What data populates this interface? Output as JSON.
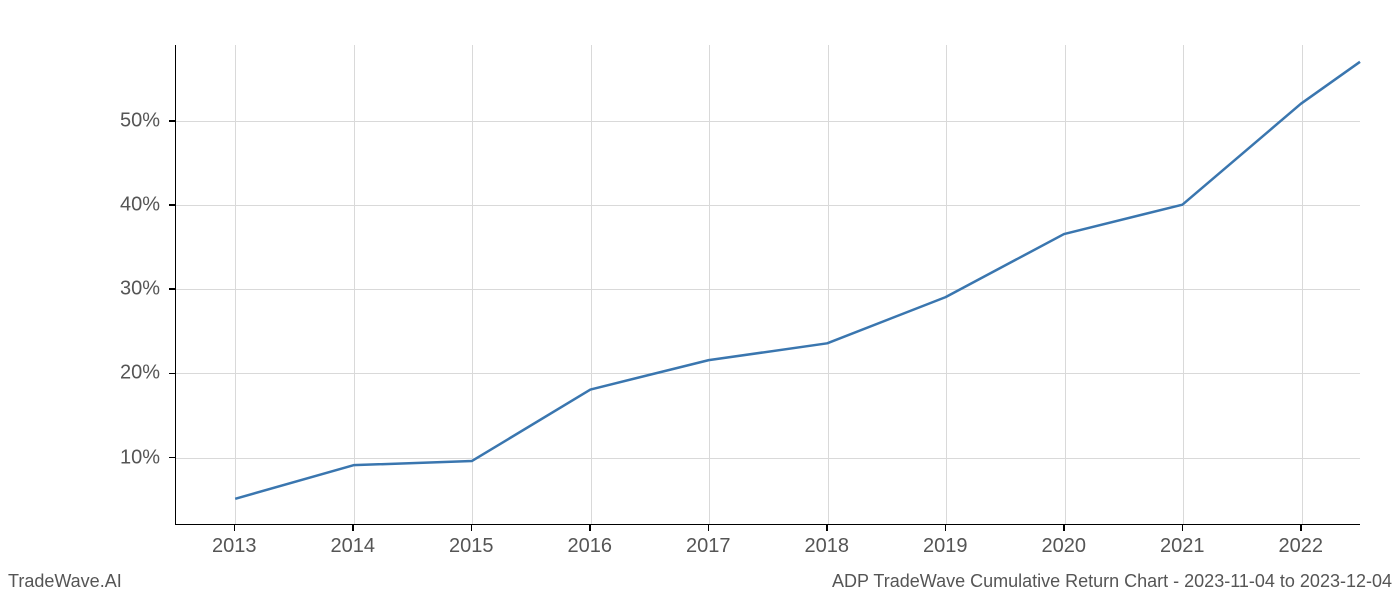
{
  "chart": {
    "type": "line",
    "x_values": [
      2013,
      2014,
      2015,
      2016,
      2017,
      2018,
      2019,
      2020,
      2021,
      2022,
      2022.5
    ],
    "y_values": [
      5,
      9,
      9.5,
      18,
      21.5,
      23.5,
      29,
      36.5,
      40,
      52,
      57
    ],
    "x_ticks": [
      2013,
      2014,
      2015,
      2016,
      2017,
      2018,
      2019,
      2020,
      2021,
      2022
    ],
    "x_tick_labels": [
      "2013",
      "2014",
      "2015",
      "2016",
      "2017",
      "2018",
      "2019",
      "2020",
      "2021",
      "2022"
    ],
    "y_ticks": [
      10,
      20,
      30,
      40,
      50
    ],
    "y_tick_labels": [
      "10%",
      "20%",
      "30%",
      "40%",
      "50%"
    ],
    "xlim": [
      2012.5,
      2022.5
    ],
    "ylim": [
      2,
      59
    ],
    "line_color": "#3a76af",
    "line_width": 2.5,
    "grid_color": "#d9d9d9",
    "background_color": "#ffffff",
    "tick_fontsize": 20,
    "tick_color": "#555555"
  },
  "footer": {
    "left": "TradeWave.AI",
    "right": "ADP TradeWave Cumulative Return Chart - 2023-11-04 to 2023-12-04",
    "fontsize": 18,
    "color": "#555555"
  }
}
